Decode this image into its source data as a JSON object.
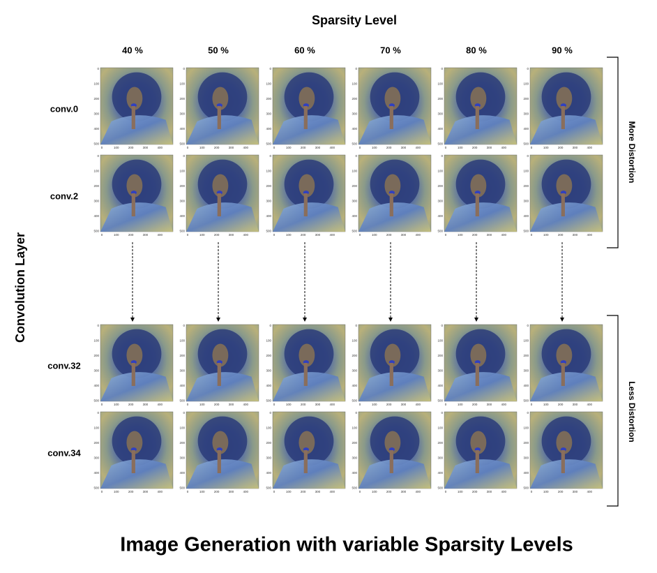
{
  "header": {
    "title": "Sparsity Level"
  },
  "columns": [
    "40 %",
    "50 %",
    "60 %",
    "70 %",
    "80 %",
    "90 %"
  ],
  "rows": [
    "conv.0",
    "conv.2",
    "conv.32",
    "conv.34"
  ],
  "row_axis_label": "Convolution Layer",
  "brackets": [
    "More Distortion",
    "Less Distortion"
  ],
  "image_axis": {
    "xticks": [
      "0",
      "100",
      "200",
      "300",
      "400"
    ],
    "yticks": [
      "0",
      "100",
      "200",
      "300",
      "400",
      "500"
    ]
  },
  "caption": "Image Generation with variable Sparsity Levels"
}
